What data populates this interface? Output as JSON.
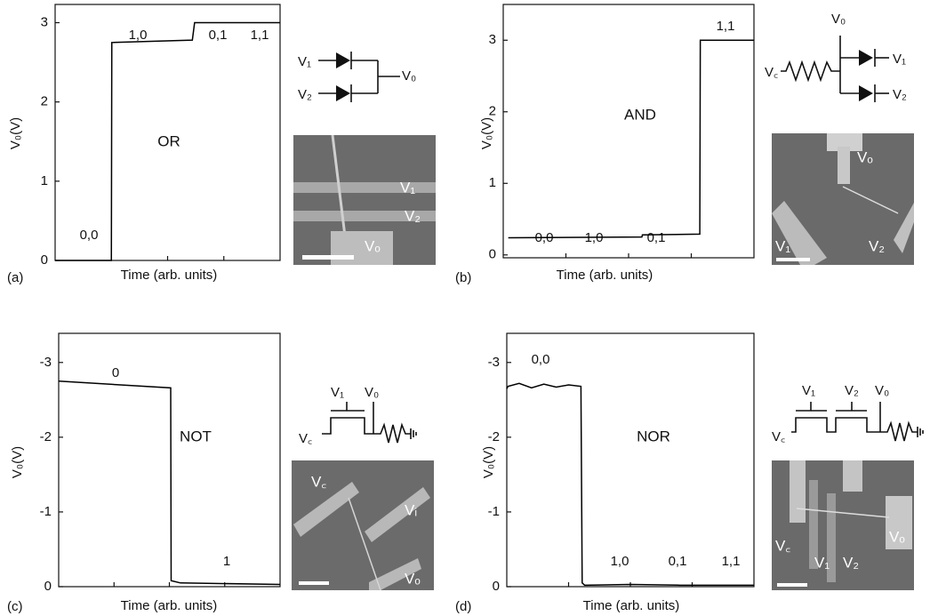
{
  "chart_data": [
    {
      "type": "line",
      "panel": "(a)",
      "gate": "OR",
      "ylabel": "V₀(V)",
      "xlabel": "Time (arb. units)",
      "annotations": [
        "0,0",
        "1,0",
        "0,1",
        "1,1"
      ],
      "circuit_labels": [
        "V₁",
        "V₂",
        "V₀"
      ],
      "image_labels": [
        "V₁",
        "V₂",
        "Vₒ"
      ],
      "x": [
        0,
        25,
        25.2,
        61,
        62,
        100
      ],
      "values": [
        0,
        0,
        2.75,
        2.78,
        3.0,
        3.0
      ],
      "color": "#000000",
      "xlim": [
        0,
        100
      ],
      "ylim": [
        0,
        3.23
      ],
      "yticks": [
        0,
        1,
        2,
        3
      ]
    },
    {
      "type": "line",
      "panel": "(b)",
      "gate": "AND",
      "ylabel": "V₀(V)",
      "xlabel": "Time (arb. units)",
      "annotations": [
        "0,0",
        "1,0",
        "0,1",
        "1,1"
      ],
      "circuit_labels": [
        "V₀",
        "V꜀",
        "V₁",
        "V₂"
      ],
      "image_labels": [
        "Vₒ",
        "V₁",
        "V₂"
      ],
      "x": [
        2,
        55.3,
        55.5,
        78.4,
        78.6,
        100
      ],
      "values": [
        0.24,
        0.25,
        0.28,
        0.29,
        3.0,
        3.0
      ],
      "color": "#000000",
      "xlim": [
        0,
        100
      ],
      "ylim": [
        -0.04,
        3.5
      ],
      "yticks": [
        0,
        1,
        2,
        3
      ]
    },
    {
      "type": "line",
      "panel": "(c)",
      "gate": "NOT",
      "ylabel": "V₀(V)",
      "xlabel": "Time (arb. units)",
      "annotations": [
        "0",
        "1"
      ],
      "circuit_labels": [
        "V₁",
        "V₀",
        "V꜀"
      ],
      "image_labels": [
        "V꜀",
        "Vᵢ",
        "Vₒ"
      ],
      "x": [
        0,
        50.6,
        50.8,
        55,
        100
      ],
      "values": [
        -2.75,
        -2.66,
        -0.08,
        -0.05,
        -0.03
      ],
      "color": "#000000",
      "xlim": [
        0,
        100
      ],
      "ylim": [
        0,
        -3.39
      ],
      "yticks": [
        0,
        -1,
        -2,
        -3
      ]
    },
    {
      "type": "line",
      "panel": "(d)",
      "gate": "NOR",
      "ylabel": "V₀(V)",
      "xlabel": "Time (arb. units)",
      "annotations": [
        "0,0",
        "1,0",
        "0,1",
        "1,1"
      ],
      "circuit_labels": [
        "V₁",
        "V₂",
        "V₀",
        "V꜀"
      ],
      "image_labels": [
        "V꜀",
        "V₁",
        "V₂",
        "Vₒ"
      ],
      "x": [
        0,
        0.5,
        5,
        10,
        15,
        20,
        25,
        30,
        30.5,
        31.5,
        50,
        70,
        100
      ],
      "values": [
        -2.65,
        -2.68,
        -2.72,
        -2.66,
        -2.71,
        -2.67,
        -2.7,
        -2.68,
        -0.05,
        -0.02,
        -0.03,
        -0.02,
        -0.02
      ],
      "color": "#000000",
      "xlim": [
        0,
        100
      ],
      "ylim": [
        0,
        -3.39
      ],
      "yticks": [
        0,
        -1,
        -2,
        -3
      ]
    }
  ]
}
